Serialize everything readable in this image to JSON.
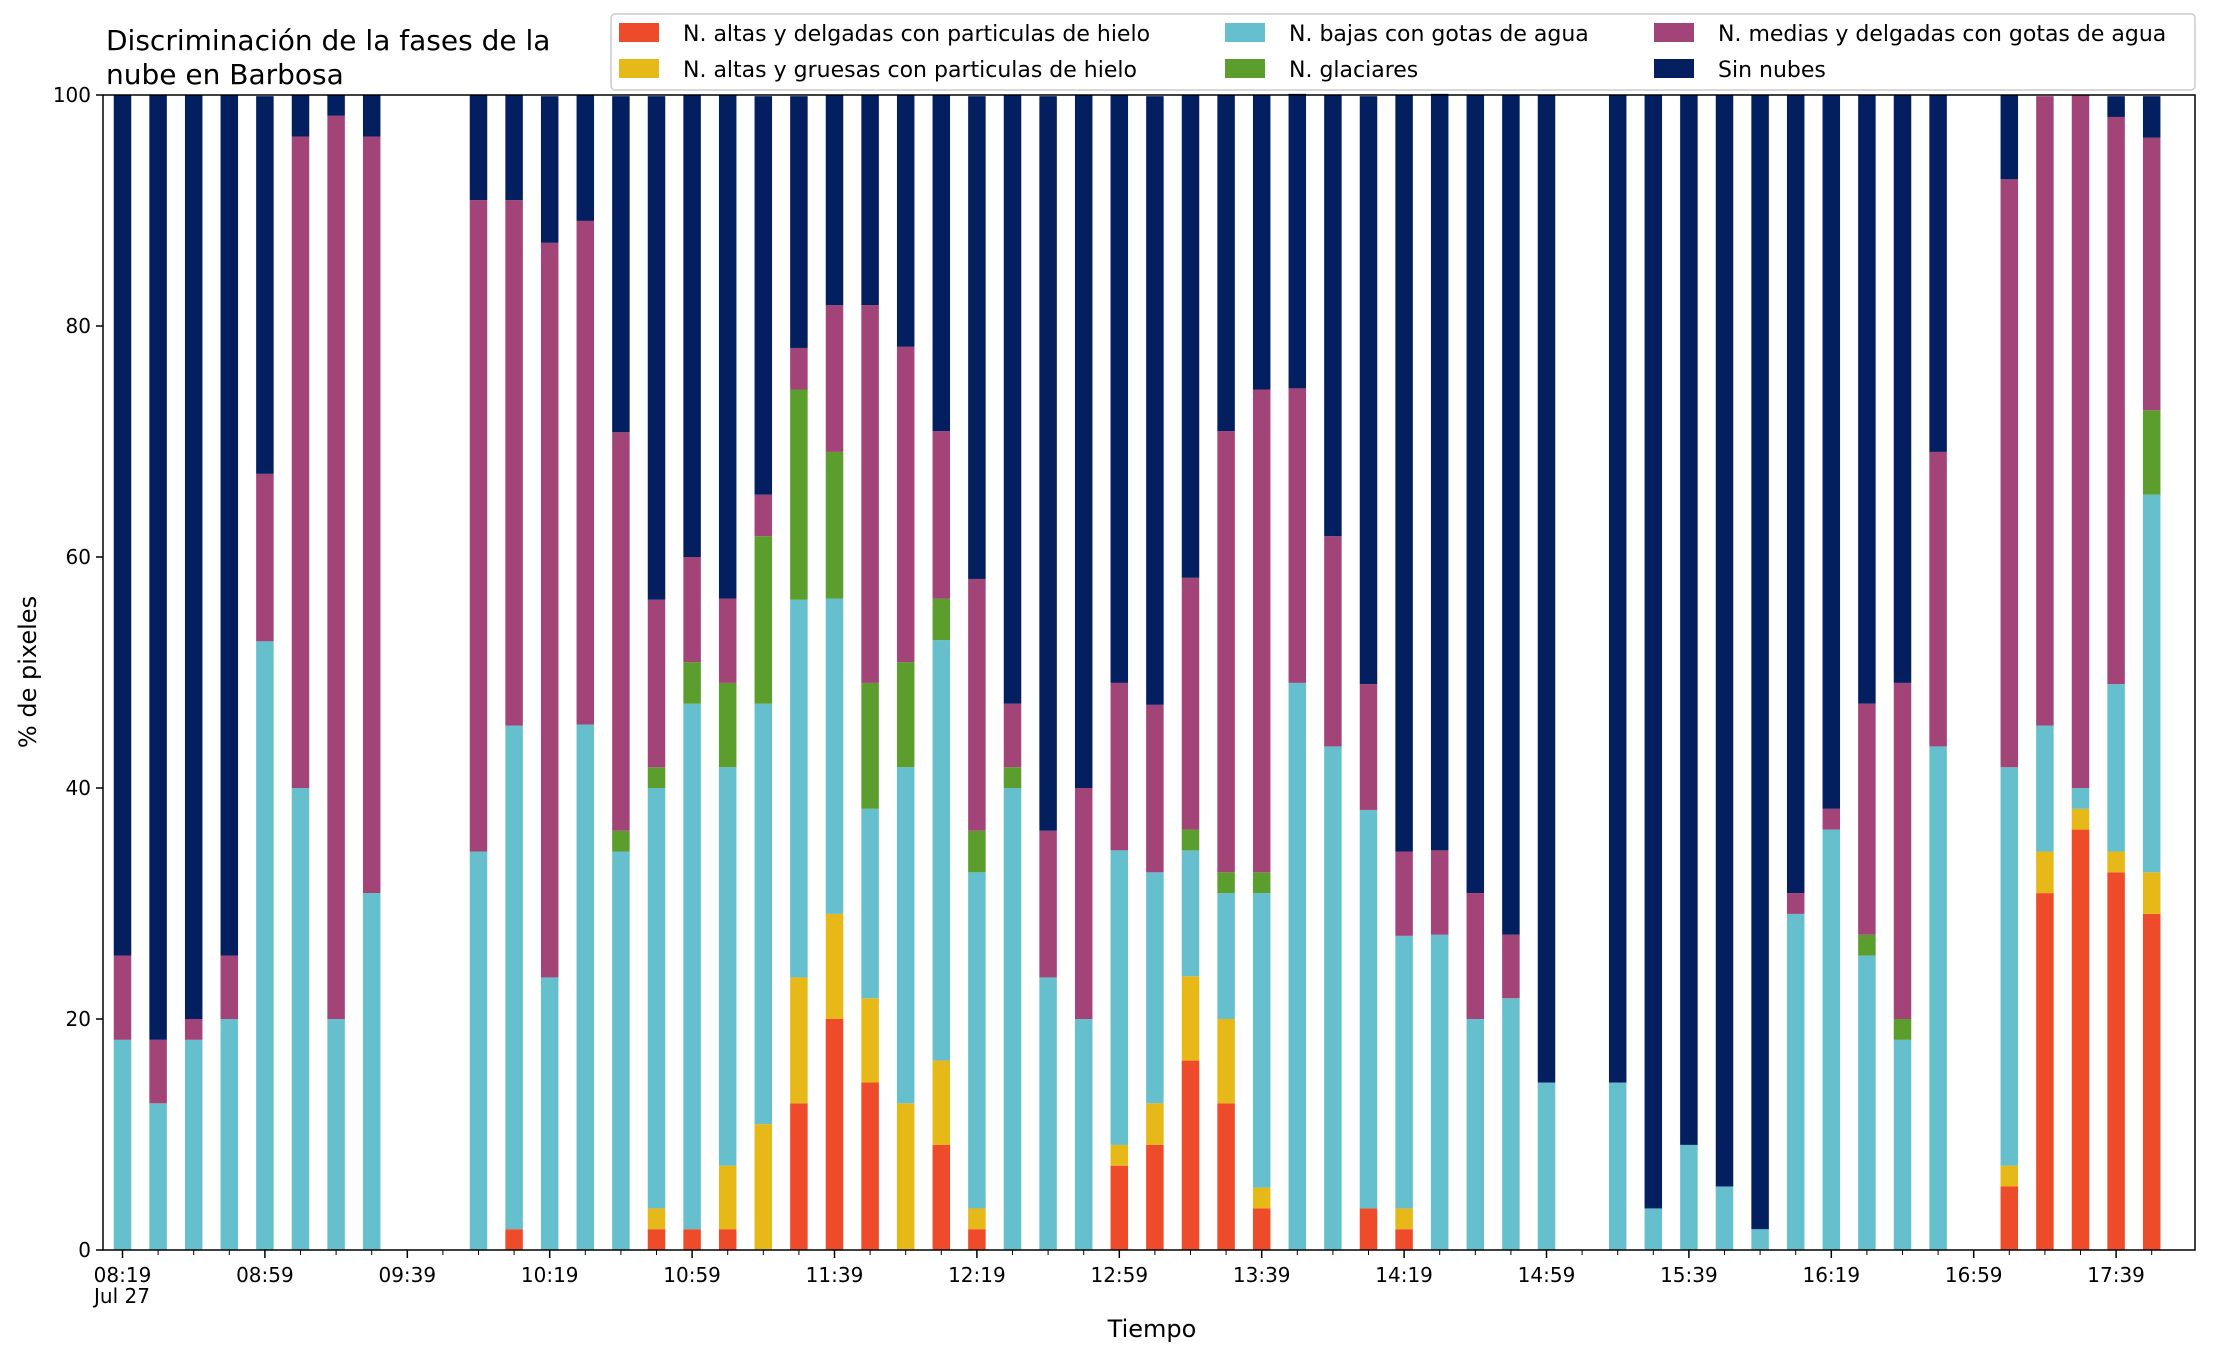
{
  "chart_data": {
    "type": "bar",
    "stacked": true,
    "title": [
      "Discriminación de la fases de la",
      "nube en Barbosa"
    ],
    "xlabel": "Tiempo",
    "ylabel": "% de pixeles",
    "ylim": [
      0,
      100
    ],
    "yticks": [
      "0",
      "20",
      "40",
      "60",
      "80",
      "100"
    ],
    "interval_minutes": 10,
    "x_start_time": "08:19",
    "x_tick_labels": [
      "08:19",
      "08:59",
      "09:39",
      "10:19",
      "10:59",
      "11:39",
      "12:19",
      "12:59",
      "13:39",
      "14:19",
      "14:59",
      "15:39",
      "16:19",
      "16:59",
      "17:39"
    ],
    "x_tick_sublabel": "Jul 27",
    "legend_placement": "top-right",
    "grid": false,
    "series": [
      {
        "name": "N. altas y delgadas con particulas de hielo",
        "color": "#ee4b2b",
        "values": [
          0,
          0,
          0,
          0,
          0,
          0,
          0,
          0,
          null,
          null,
          0,
          1.8,
          0,
          0,
          0,
          1.8,
          1.8,
          1.8,
          0,
          12.7,
          20,
          14.5,
          0,
          9.1,
          1.8,
          0,
          0,
          0,
          7.3,
          9.1,
          16.4,
          12.7,
          3.6,
          0,
          0,
          3.6,
          1.8,
          0,
          0,
          0,
          0,
          null,
          0,
          0,
          0,
          0,
          0,
          0,
          0,
          0,
          0,
          0,
          null,
          5.5,
          30.9,
          36.4,
          32.7,
          29.1
        ]
      },
      {
        "name": "N. altas y gruesas con particulas de hielo",
        "color": "#e6b818",
        "values": [
          0,
          0,
          0,
          0,
          0,
          0,
          0,
          0,
          null,
          null,
          0,
          0,
          0,
          0,
          0,
          1.8,
          0,
          5.5,
          10.9,
          10.9,
          9.1,
          7.3,
          12.7,
          7.3,
          1.8,
          0,
          0,
          0,
          1.8,
          3.6,
          7.3,
          7.3,
          1.8,
          0,
          0,
          0,
          1.8,
          0,
          0,
          0,
          0,
          null,
          0,
          0,
          0,
          0,
          0,
          0,
          0,
          0,
          0,
          0,
          null,
          1.8,
          3.6,
          1.8,
          1.8,
          3.6
        ]
      },
      {
        "name": "N. bajas con gotas de agua",
        "color": "#66bfcc",
        "values": [
          18.2,
          12.7,
          18.2,
          20,
          52.7,
          40,
          20,
          30.9,
          null,
          null,
          34.5,
          43.6,
          23.6,
          45.5,
          34.5,
          36.4,
          45.5,
          34.5,
          36.4,
          32.7,
          27.3,
          16.4,
          29.1,
          36.4,
          29.1,
          40,
          23.6,
          20,
          25.5,
          20,
          10.9,
          10.9,
          25.5,
          49.1,
          43.6,
          34.5,
          23.6,
          27.3,
          20,
          21.8,
          14.5,
          null,
          14.5,
          3.6,
          9.1,
          5.5,
          1.8,
          29.1,
          36.4,
          25.5,
          18.2,
          43.6,
          null,
          34.5,
          10.9,
          1.8,
          14.5,
          32.7
        ]
      },
      {
        "name": "N. glaciares",
        "color": "#5c9e2e",
        "values": [
          0,
          0,
          0,
          0,
          0,
          0,
          0,
          0,
          null,
          null,
          0,
          0,
          0,
          0,
          1.8,
          1.8,
          3.6,
          7.3,
          14.5,
          18.2,
          12.7,
          10.9,
          9.1,
          3.6,
          3.6,
          1.8,
          0,
          0,
          0,
          0,
          1.8,
          1.8,
          1.8,
          0,
          0,
          0,
          0,
          0,
          0,
          0,
          0,
          null,
          0,
          0,
          0,
          0,
          0,
          0,
          0,
          1.8,
          1.8,
          0,
          null,
          0,
          0,
          0,
          0,
          7.3
        ]
      },
      {
        "name": "N. medias y delgadas con gotas de agua",
        "color": "#a34479",
        "values": [
          7.3,
          5.5,
          1.8,
          5.5,
          14.5,
          56.4,
          78.2,
          65.5,
          null,
          null,
          56.4,
          45.5,
          63.6,
          43.6,
          34.5,
          14.5,
          9.1,
          7.3,
          3.6,
          3.6,
          12.7,
          32.7,
          27.3,
          14.5,
          21.8,
          5.5,
          12.7,
          20,
          14.5,
          14.5,
          21.8,
          38.2,
          41.8,
          25.5,
          18.2,
          10.9,
          7.3,
          7.3,
          10.9,
          5.5,
          0,
          null,
          0,
          0,
          0,
          0,
          0,
          1.8,
          1.8,
          20,
          29.1,
          25.5,
          null,
          50.9,
          54.5,
          60,
          49.1,
          23.6
        ]
      },
      {
        "name": "Sin nubes",
        "color": "#031f5f",
        "values": [
          74.5,
          81.8,
          80,
          74.5,
          32.7,
          3.6,
          1.8,
          3.6,
          null,
          null,
          9.1,
          9.1,
          12.7,
          10.9,
          29.1,
          43.6,
          40,
          43.6,
          34.5,
          21.8,
          18.2,
          18.2,
          21.8,
          29.1,
          41.8,
          52.7,
          63.6,
          60,
          50.9,
          52.7,
          41.8,
          29.1,
          25.5,
          25.5,
          38.2,
          50.9,
          65.5,
          65.5,
          69.1,
          72.7,
          85.5,
          null,
          85.5,
          96.4,
          90.9,
          94.5,
          98.2,
          69.1,
          61.8,
          52.7,
          50.9,
          30.9,
          null,
          7.3,
          0,
          0,
          1.8,
          3.6
        ]
      }
    ]
  }
}
